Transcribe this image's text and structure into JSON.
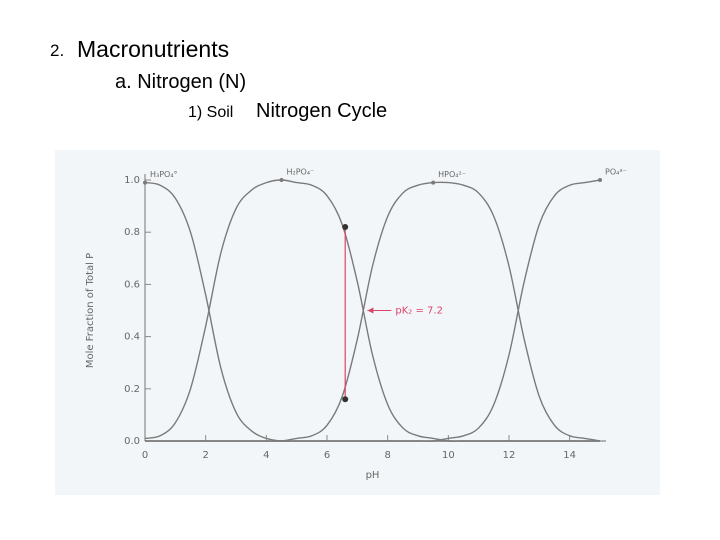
{
  "slide": {
    "heading": {
      "number": "2.",
      "text": "Macronutrients"
    },
    "subheading": "a. Nitrogen (N)",
    "item": {
      "number": "1) Soil",
      "text": "Nitrogen Cycle"
    }
  },
  "chart_data": {
    "type": "line",
    "x": [
      0,
      0.5,
      1,
      1.5,
      2,
      2.5,
      3,
      3.5,
      4,
      4.5,
      5,
      5.5,
      6,
      6.5,
      7,
      7.5,
      8,
      8.5,
      9,
      9.5,
      10,
      10.5,
      11,
      11.5,
      12,
      12.5,
      13,
      13.5,
      14,
      14.5,
      15
    ],
    "series": [
      {
        "name": "H₃PO₄°",
        "color": "#7a7a7a",
        "values": [
          0.99,
          0.98,
          0.93,
          0.8,
          0.56,
          0.28,
          0.11,
          0.04,
          0.01,
          0,
          0,
          0,
          0,
          0,
          0,
          0,
          0,
          0,
          0,
          0,
          0,
          0,
          0,
          0,
          0,
          0,
          0,
          0,
          0,
          0,
          0
        ]
      },
      {
        "name": "H₂PO₄⁻",
        "color": "#7a7a7a",
        "values": [
          0.01,
          0.02,
          0.07,
          0.2,
          0.44,
          0.72,
          0.89,
          0.96,
          0.99,
          1,
          0.99,
          0.98,
          0.94,
          0.83,
          0.61,
          0.33,
          0.14,
          0.05,
          0.02,
          0.01,
          0,
          0,
          0,
          0,
          0,
          0,
          0,
          0,
          0,
          0,
          0
        ]
      },
      {
        "name": "HPO₄²⁻",
        "color": "#7a7a7a",
        "values": [
          0,
          0,
          0,
          0,
          0,
          0,
          0,
          0,
          0,
          0,
          0.01,
          0.02,
          0.06,
          0.17,
          0.39,
          0.67,
          0.86,
          0.95,
          0.98,
          0.99,
          0.99,
          0.98,
          0.95,
          0.86,
          0.67,
          0.39,
          0.17,
          0.06,
          0.02,
          0.01,
          0
        ]
      },
      {
        "name": "PO₄³⁻",
        "color": "#7a7a7a",
        "values": [
          0,
          0,
          0,
          0,
          0,
          0,
          0,
          0,
          0,
          0,
          0,
          0,
          0,
          0,
          0,
          0,
          0,
          0,
          0,
          0,
          0.01,
          0.02,
          0.05,
          0.14,
          0.33,
          0.61,
          0.83,
          0.94,
          0.98,
          0.99,
          1
        ]
      }
    ],
    "highlight": {
      "x": 6.6,
      "values": [
        0.82,
        0.16
      ],
      "color": "#d9456a"
    },
    "annotation": {
      "text": "pK₂ = 7.2",
      "x": 7.2,
      "y": 0.5,
      "color": "#d9456a"
    },
    "xlabel": "pH",
    "ylabel": "Mole Fraction of Total P",
    "xlim": [
      0,
      15
    ],
    "ylim": [
      0,
      1
    ],
    "xticks": [
      0,
      2,
      4,
      6,
      8,
      10,
      12,
      14
    ],
    "yticks": [
      {
        "value": 0,
        "label": "0.0"
      },
      0.2,
      0.4,
      0.6,
      0.8,
      {
        "value": 1,
        "label": "1.0"
      }
    ],
    "axis_color": "#8a8a8a"
  }
}
